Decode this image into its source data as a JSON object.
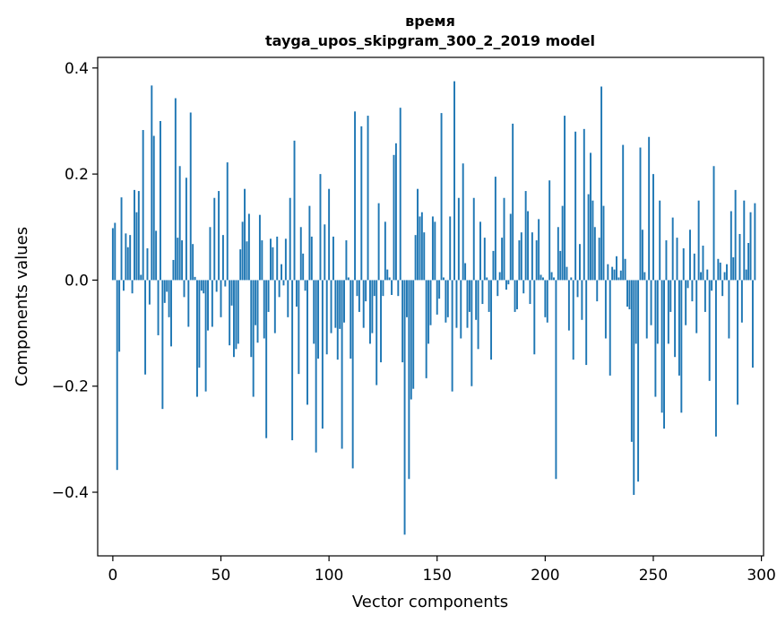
{
  "chart_data": {
    "type": "bar",
    "title_line1": "время",
    "title_line2": "tayga_upos_skipgram_300_2_2019 model",
    "xlabel": "Vector components",
    "ylabel": "Components values",
    "xlim": [
      -7,
      301
    ],
    "ylim": [
      -0.52,
      0.42
    ],
    "x_ticks": [
      0,
      50,
      100,
      150,
      200,
      250,
      300
    ],
    "x_tick_labels": [
      "0",
      "50",
      "100",
      "150",
      "200",
      "250",
      "300"
    ],
    "y_ticks": [
      -0.4,
      -0.2,
      0.0,
      0.2,
      0.4
    ],
    "y_tick_labels": [
      "−0.4",
      "−0.2",
      "0.0",
      "0.2",
      "0.4"
    ],
    "bar_color": "#1f77b4",
    "values": [
      0.098,
      0.108,
      -0.358,
      -0.135,
      0.156,
      -0.02,
      0.088,
      0.062,
      0.085,
      -0.025,
      0.17,
      0.128,
      0.168,
      0.01,
      0.283,
      -0.178,
      0.06,
      -0.046,
      0.367,
      0.272,
      0.093,
      -0.104,
      0.3,
      -0.243,
      -0.043,
      -0.022,
      -0.07,
      -0.125,
      0.038,
      0.343,
      0.08,
      0.215,
      0.075,
      -0.032,
      0.193,
      -0.088,
      0.316,
      0.068,
      0.006,
      -0.22,
      -0.165,
      -0.02,
      -0.025,
      -0.21,
      -0.095,
      0.1,
      -0.088,
      0.155,
      -0.022,
      0.168,
      -0.07,
      0.085,
      -0.012,
      0.222,
      -0.123,
      -0.048,
      -0.145,
      -0.13,
      -0.12,
      0.058,
      0.11,
      0.172,
      0.073,
      0.125,
      -0.145,
      -0.22,
      -0.085,
      -0.118,
      0.123,
      0.075,
      -0.11,
      -0.298,
      -0.06,
      0.078,
      0.062,
      -0.1,
      0.082,
      -0.032,
      0.03,
      -0.01,
      0.078,
      -0.07,
      0.155,
      -0.302,
      0.263,
      -0.05,
      -0.177,
      0.1,
      0.05,
      -0.02,
      -0.235,
      0.14,
      0.082,
      -0.12,
      -0.325,
      -0.148,
      0.2,
      -0.28,
      0.105,
      -0.14,
      0.172,
      -0.1,
      0.082,
      -0.09,
      -0.15,
      -0.092,
      -0.318,
      -0.08,
      0.075,
      0.005,
      -0.148,
      -0.355,
      0.318,
      -0.03,
      -0.06,
      0.29,
      -0.09,
      -0.04,
      0.31,
      -0.12,
      -0.1,
      -0.03,
      -0.198,
      0.145,
      -0.155,
      -0.03,
      0.11,
      0.02,
      0.005,
      -0.028,
      0.236,
      0.258,
      -0.03,
      0.325,
      -0.155,
      -0.48,
      -0.07,
      -0.375,
      -0.225,
      -0.205,
      0.085,
      0.172,
      0.12,
      0.128,
      0.09,
      -0.185,
      -0.12,
      -0.085,
      0.12,
      0.11,
      -0.065,
      -0.035,
      0.315,
      0.005,
      -0.08,
      -0.07,
      0.12,
      -0.21,
      0.375,
      -0.09,
      0.155,
      -0.11,
      0.22,
      0.032,
      -0.09,
      -0.06,
      -0.2,
      0.155,
      -0.075,
      -0.13,
      0.11,
      -0.045,
      0.08,
      0.005,
      -0.06,
      -0.15,
      0.055,
      0.195,
      -0.03,
      0.015,
      0.08,
      0.155,
      -0.018,
      -0.008,
      0.125,
      0.295,
      -0.06,
      -0.055,
      0.075,
      0.09,
      -0.025,
      0.168,
      0.13,
      -0.045,
      0.09,
      -0.14,
      0.075,
      0.115,
      0.01,
      0.005,
      -0.07,
      -0.08,
      0.188,
      0.015,
      0.005,
      -0.375,
      0.1,
      0.055,
      0.14,
      0.31,
      0.025,
      -0.095,
      0.005,
      -0.15,
      0.28,
      -0.032,
      0.068,
      -0.075,
      0.285,
      -0.16,
      0.162,
      0.24,
      0.15,
      0.1,
      -0.04,
      0.08,
      0.365,
      0.14,
      -0.11,
      0.03,
      -0.18,
      0.025,
      0.02,
      0.045,
      0.005,
      0.018,
      0.255,
      0.04,
      -0.05,
      -0.055,
      -0.305,
      -0.405,
      -0.12,
      -0.38,
      0.25,
      0.095,
      0.015,
      -0.11,
      0.27,
      -0.085,
      0.2,
      -0.22,
      -0.12,
      0.15,
      -0.25,
      -0.28,
      0.075,
      -0.12,
      -0.06,
      0.118,
      -0.145,
      0.08,
      -0.18,
      -0.25,
      0.06,
      -0.085,
      -0.015,
      0.095,
      -0.04,
      0.05,
      -0.1,
      0.15,
      0.015,
      0.065,
      -0.06,
      0.02,
      -0.19,
      -0.02,
      0.215,
      -0.295,
      0.04,
      0.033,
      -0.03,
      0.015,
      0.03,
      -0.11,
      0.13,
      0.043,
      0.17,
      -0.235,
      0.087,
      -0.08,
      0.15,
      0.02,
      0.07,
      0.128,
      -0.165,
      0.145
    ]
  }
}
